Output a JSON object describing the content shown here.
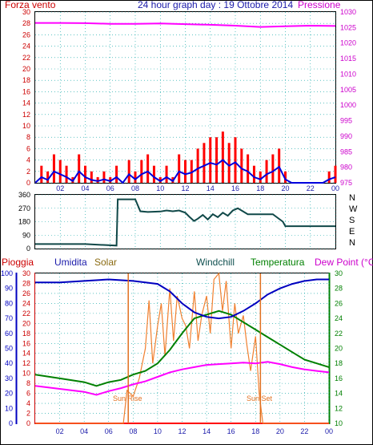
{
  "header": {
    "left_label": "Forza vento",
    "title": "24 hour graph day : 19 Ottobre 2014",
    "right_label": "Pressione"
  },
  "direction_labels": [
    "N",
    "W",
    "S",
    "E",
    "N"
  ],
  "bottom_legend": {
    "pioggia": "Pioggia",
    "umidita": "Umidita",
    "solar": "Solar",
    "windchill": "Windchill",
    "temperatura": "Temperatura",
    "dew_point": "Dew Point (°C)"
  },
  "annotations": {
    "sun_rise": "Sun Rise",
    "sun_set": "Sun Set"
  },
  "colors": {
    "wind_gust": "#ff0000",
    "wind_avg": "#0000dd",
    "pressure": "#ff00ff",
    "direction": "#104848",
    "humidity": "#0000c0",
    "solar": "#f08030",
    "temperature": "#008000",
    "dew_point": "#ff00ff",
    "rain": "#ff0000",
    "sun_line": "#e07020",
    "left_axis": "#cc0000",
    "right_axis_top": "#cc00cc",
    "humidity_axis": "#0000c0",
    "temp_axis": "#008000",
    "grid": "#00a0a0"
  },
  "chart_data": [
    {
      "type": "line",
      "x_ticks": [
        "02",
        "04",
        "06",
        "08",
        "10",
        "12",
        "14",
        "16",
        "18",
        "20",
        "22",
        "00"
      ],
      "left_axis": {
        "min": 0,
        "max": 30,
        "ticks": [
          "0",
          "2",
          "4",
          "6",
          "8",
          "10",
          "12",
          "14",
          "16",
          "18",
          "20",
          "22",
          "24",
          "26",
          "28",
          "30"
        ]
      },
      "right_axis": {
        "min": 975,
        "max": 1030,
        "ticks": [
          "975",
          "980",
          "985",
          "990",
          "995",
          "1000",
          "1005",
          "1010",
          "1015",
          "1020",
          "1025",
          "1030"
        ]
      },
      "series": [
        {
          "key": "wind_gust",
          "axis": "left",
          "style": "bars",
          "hours": [
            0,
            0.5,
            1,
            1.5,
            2,
            2.5,
            3,
            3.5,
            4,
            4.5,
            5,
            5.5,
            6,
            6.5,
            7,
            7.5,
            8,
            8.5,
            9,
            9.5,
            10,
            10.5,
            11,
            11.5,
            12,
            12.5,
            13,
            13.5,
            14,
            14.5,
            15,
            15.5,
            16,
            16.5,
            17,
            17.5,
            18,
            18.5,
            19,
            19.5,
            20,
            20.5,
            21,
            21.5,
            22,
            22.5,
            23,
            23.5,
            24
          ],
          "values": [
            0,
            3,
            2,
            5,
            4,
            3,
            1,
            5,
            3,
            2,
            1,
            2,
            1,
            3,
            0,
            4,
            2,
            4,
            5,
            3,
            1,
            3,
            1,
            5,
            4,
            4,
            6,
            7,
            8,
            8,
            9,
            7,
            8,
            6,
            5,
            3,
            2,
            4,
            5,
            6,
            2,
            0,
            0,
            0,
            0,
            0,
            0,
            2,
            3
          ]
        },
        {
          "key": "wind_avg",
          "axis": "left",
          "hours": [
            0,
            0.5,
            1,
            1.5,
            2,
            2.5,
            3,
            3.5,
            4,
            4.5,
            5,
            5.5,
            6,
            6.5,
            7,
            7.5,
            8,
            8.5,
            9,
            9.5,
            10,
            10.5,
            11,
            11.5,
            12,
            12.5,
            13,
            13.5,
            14,
            14.5,
            15,
            15.5,
            16,
            16.5,
            17,
            17.5,
            18,
            18.5,
            19,
            19.5,
            20,
            20.5,
            21,
            21.5,
            22,
            22.5,
            23,
            23.5,
            24
          ],
          "values": [
            0,
            1,
            0.5,
            2,
            1.5,
            1,
            0.3,
            2,
            1,
            0.5,
            0.3,
            0.6,
            0.3,
            1,
            0,
            1.5,
            0.6,
            1.5,
            2,
            1,
            0.3,
            1,
            0.3,
            2,
            1.5,
            1.8,
            2.5,
            3,
            3.5,
            3.2,
            4,
            3,
            3.6,
            2.5,
            2,
            1,
            0.6,
            1.5,
            2,
            2.8,
            0.6,
            0,
            0,
            0,
            0,
            0,
            0,
            0.6,
            1
          ]
        },
        {
          "key": "pressure",
          "axis": "right",
          "hours": [
            0,
            2,
            4,
            6,
            8,
            10,
            12,
            14,
            16,
            18,
            20,
            22,
            24
          ],
          "values": [
            1026.5,
            1026.5,
            1026.4,
            1026.2,
            1026.2,
            1026.3,
            1026.1,
            1025.9,
            1025.6,
            1025.2,
            1025.4,
            1025.6,
            1025.5
          ]
        }
      ]
    },
    {
      "type": "line",
      "x_ticks": [
        "02",
        "04",
        "06",
        "08",
        "10",
        "12",
        "14",
        "16",
        "18",
        "20",
        "22",
        "00"
      ],
      "y_axis": {
        "min": 0,
        "max": 360,
        "ticks": [
          "0",
          "90",
          "180",
          "270",
          "360"
        ]
      },
      "series": [
        {
          "key": "direction",
          "hours": [
            0,
            4,
            6.5,
            6.6,
            8,
            8.4,
            9,
            10,
            10.5,
            11,
            11.5,
            12,
            12.3,
            12.7,
            13,
            13.4,
            13.8,
            14.2,
            14.6,
            15,
            15.4,
            15.8,
            16.2,
            16.6,
            17,
            18,
            19,
            19.8,
            20,
            24
          ],
          "values": [
            30,
            30,
            20,
            330,
            330,
            250,
            245,
            248,
            255,
            250,
            255,
            240,
            215,
            185,
            200,
            225,
            195,
            230,
            210,
            240,
            220,
            255,
            270,
            250,
            230,
            230,
            230,
            180,
            150,
            150
          ]
        }
      ]
    },
    {
      "type": "line",
      "x_ticks": [
        "02",
        "04",
        "06",
        "08",
        "10",
        "12",
        "14",
        "16",
        "18",
        "20",
        "22",
        "00"
      ],
      "humidity_axis": {
        "min": 0,
        "max": 100,
        "ticks": [
          "0",
          "10",
          "20",
          "30",
          "40",
          "50",
          "60",
          "70",
          "80",
          "90",
          "100"
        ]
      },
      "rain_axis": {
        "min": 0,
        "max": 30,
        "ticks": [
          "0",
          "2",
          "4",
          "6",
          "8",
          "10",
          "12",
          "14",
          "16",
          "18",
          "20",
          "22",
          "24",
          "26",
          "28",
          "30"
        ]
      },
      "temp_axis": {
        "min": 10,
        "max": 30,
        "ticks": [
          "10",
          "12",
          "14",
          "16",
          "18",
          "20",
          "22",
          "24",
          "26",
          "28",
          "30"
        ]
      },
      "series": [
        {
          "key": "humidity",
          "axis": "humidity",
          "hours": [
            0,
            2,
            4,
            6,
            8,
            10,
            11,
            12,
            13,
            14,
            15,
            16,
            17,
            18,
            19,
            20,
            21,
            22,
            23,
            24
          ],
          "values": [
            94,
            94,
            95,
            96,
            95,
            93,
            88,
            80,
            74,
            71,
            70,
            71,
            75,
            80,
            86,
            90,
            93,
            95,
            96,
            96
          ]
        },
        {
          "key": "rain",
          "axis": "rain",
          "hours": [
            0,
            24
          ],
          "values": [
            0,
            0
          ]
        },
        {
          "key": "solar",
          "axis": "humidity",
          "hours": [
            0,
            7.2,
            7.5,
            8,
            8.5,
            9,
            9.3,
            9.6,
            10,
            10.3,
            10.6,
            11,
            11.3,
            11.6,
            12,
            12.3,
            12.6,
            13,
            13.3,
            13.6,
            14,
            14.3,
            14.6,
            15,
            15.3,
            15.6,
            16,
            16.3,
            16.6,
            17,
            17.3,
            17.6,
            18,
            18.3,
            18.6,
            24
          ],
          "values": [
            0,
            0,
            22,
            18,
            30,
            50,
            82,
            40,
            65,
            80,
            45,
            90,
            55,
            85,
            70,
            65,
            50,
            88,
            55,
            72,
            85,
            60,
            96,
            100,
            75,
            95,
            50,
            80,
            60,
            72,
            52,
            35,
            58,
            20,
            0,
            0
          ]
        },
        {
          "key": "temperature",
          "axis": "temp",
          "hours": [
            0,
            2,
            4,
            5,
            6,
            7,
            8,
            9,
            10,
            11,
            12,
            12.5,
            13,
            14,
            15,
            16,
            17,
            18,
            19,
            20,
            21,
            22,
            23,
            24
          ],
          "values": [
            16.5,
            16.0,
            15.5,
            15.0,
            15.5,
            15.8,
            16.5,
            17.0,
            18.0,
            19.8,
            22.0,
            23.0,
            24.0,
            24.5,
            25.0,
            24.5,
            23.5,
            22.5,
            21.5,
            20.5,
            19.5,
            18.5,
            18.0,
            17.5
          ]
        },
        {
          "key": "dew_point",
          "axis": "temp",
          "hours": [
            0,
            2,
            4,
            5,
            6,
            7,
            8,
            9,
            10,
            11,
            12,
            13,
            14,
            15,
            16,
            17,
            18,
            19,
            20,
            21,
            22,
            23,
            24
          ],
          "values": [
            15.0,
            14.6,
            14.2,
            13.8,
            14.3,
            14.7,
            15.2,
            15.6,
            16.2,
            16.8,
            17.2,
            17.5,
            17.8,
            17.9,
            18.0,
            18.1,
            18.0,
            18.2,
            17.9,
            17.5,
            17.2,
            17.0,
            16.8
          ]
        },
        {
          "key": "sun_rise",
          "style": "vline",
          "hours": [
            7.6
          ],
          "values": [
            100
          ]
        },
        {
          "key": "sun_set",
          "style": "vline",
          "hours": [
            18.4
          ],
          "values": [
            100
          ]
        }
      ]
    }
  ]
}
